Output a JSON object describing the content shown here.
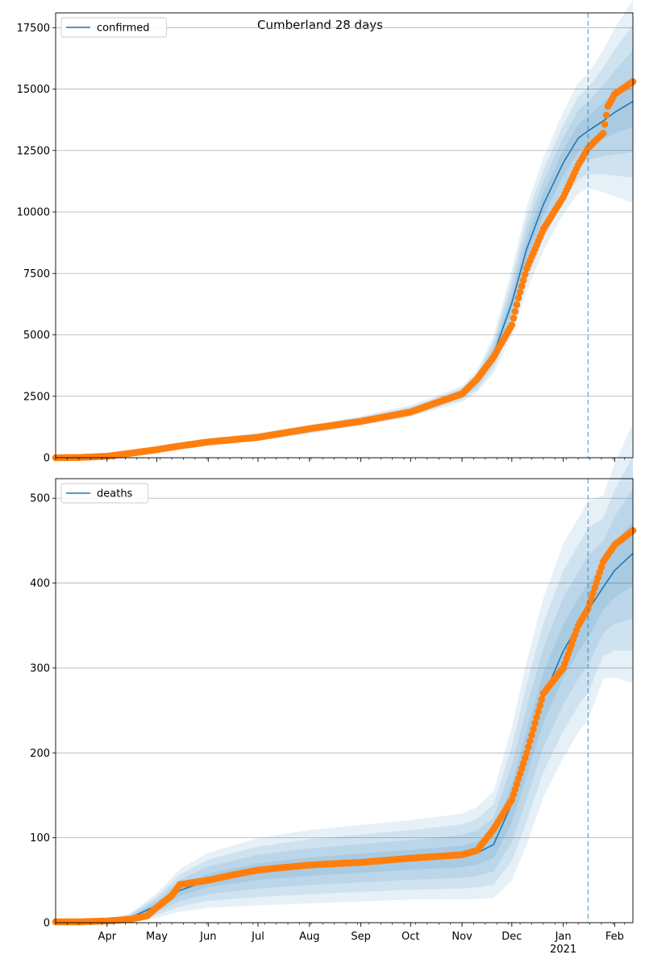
{
  "figure": {
    "title": "Cumberland 28 days"
  },
  "colors": {
    "model": "#1f77b4",
    "observed": "#ff7f0e",
    "band": "#1f77b4",
    "grid": "#b0b0b0",
    "cutoff": "#1f77b4"
  },
  "x_axis": {
    "start_date": "2020-03-01",
    "end_date": "2021-02-12",
    "month_ticks": [
      {
        "label": "Apr",
        "date": "2020-04-01"
      },
      {
        "label": "May",
        "date": "2020-05-01"
      },
      {
        "label": "Jun",
        "date": "2020-06-01"
      },
      {
        "label": "Jul",
        "date": "2020-07-01"
      },
      {
        "label": "Aug",
        "date": "2020-08-01"
      },
      {
        "label": "Sep",
        "date": "2020-09-01"
      },
      {
        "label": "Oct",
        "date": "2020-10-01"
      },
      {
        "label": "Nov",
        "date": "2020-11-01"
      },
      {
        "label": "Dec",
        "date": "2020-12-01"
      },
      {
        "label": "Jan",
        "date": "2021-01-01"
      },
      {
        "label": "Feb",
        "date": "2021-02-01"
      }
    ],
    "year_label": "2021",
    "forecast_cutoff": "2021-01-16"
  },
  "chart_data": [
    {
      "type": "line",
      "legend": "confirmed",
      "legend_position": "top-left",
      "grid": "horizontal",
      "ylim": [
        0,
        18100
      ],
      "yticks": [
        0,
        2500,
        5000,
        7500,
        10000,
        12500,
        15000,
        17500
      ],
      "model": {
        "x": [
          "2020-03-01",
          "2020-03-15",
          "2020-04-01",
          "2020-04-15",
          "2020-05-01",
          "2020-05-15",
          "2020-06-01",
          "2020-07-01",
          "2020-08-01",
          "2020-09-01",
          "2020-10-01",
          "2020-10-15",
          "2020-11-01",
          "2020-11-10",
          "2020-11-20",
          "2020-12-01",
          "2020-12-10",
          "2020-12-20",
          "2021-01-01",
          "2021-01-10",
          "2021-01-16",
          "2021-01-25",
          "2021-02-01",
          "2021-02-12"
        ],
        "y": [
          0,
          15,
          80,
          200,
          350,
          500,
          650,
          850,
          1150,
          1500,
          1900,
          2200,
          2600,
          3100,
          4200,
          6300,
          8500,
          10300,
          12000,
          13000,
          13300,
          13700,
          14050,
          14500
        ],
        "band_half_width": [
          0,
          5,
          20,
          40,
          60,
          70,
          80,
          90,
          100,
          110,
          130,
          150,
          180,
          250,
          420,
          750,
          950,
          1050,
          1150,
          1250,
          1300,
          1600,
          1900,
          2300
        ]
      },
      "observed": {
        "x": [
          "2020-03-01",
          "2020-03-15",
          "2020-04-01",
          "2020-04-15",
          "2020-05-01",
          "2020-05-15",
          "2020-06-01",
          "2020-07-01",
          "2020-08-01",
          "2020-09-01",
          "2020-10-01",
          "2020-10-15",
          "2020-11-01",
          "2020-11-10",
          "2020-11-20",
          "2020-12-01",
          "2020-12-05",
          "2020-12-10",
          "2020-12-20",
          "2021-01-01",
          "2021-01-10",
          "2021-01-16",
          "2021-01-25",
          "2021-01-28",
          "2021-02-01",
          "2021-02-12"
        ],
        "y": [
          0,
          10,
          60,
          180,
          330,
          480,
          640,
          830,
          1180,
          1480,
          1860,
          2200,
          2600,
          3200,
          4100,
          5400,
          6500,
          7700,
          9300,
          10600,
          11900,
          12600,
          13200,
          14300,
          14800,
          15300
        ]
      }
    },
    {
      "type": "line",
      "legend": "deaths",
      "legend_position": "top-left",
      "grid": "horizontal",
      "ylim": [
        0,
        523
      ],
      "yticks": [
        0,
        100,
        200,
        300,
        400,
        500
      ],
      "model": {
        "x": [
          "2020-03-01",
          "2020-03-15",
          "2020-04-01",
          "2020-04-15",
          "2020-05-01",
          "2020-05-15",
          "2020-06-01",
          "2020-07-01",
          "2020-08-01",
          "2020-09-01",
          "2020-10-01",
          "2020-11-01",
          "2020-11-10",
          "2020-11-20",
          "2020-12-01",
          "2020-12-10",
          "2020-12-20",
          "2021-01-01",
          "2021-01-10",
          "2021-01-16",
          "2021-01-25",
          "2021-02-01",
          "2021-02-12"
        ],
        "y": [
          1,
          1,
          2,
          6,
          20,
          38,
          50,
          60,
          66,
          70,
          74,
          78,
          82,
          92,
          140,
          200,
          265,
          320,
          350,
          368,
          395,
          415,
          435
        ],
        "band_half_width": [
          0.5,
          0.5,
          1,
          3,
          8,
          14,
          18,
          22,
          24,
          25,
          26,
          28,
          30,
          35,
          50,
          60,
          65,
          70,
          70,
          72,
          60,
          70,
          85
        ]
      },
      "observed": {
        "x": [
          "2020-03-01",
          "2020-03-15",
          "2020-04-01",
          "2020-04-15",
          "2020-04-25",
          "2020-05-01",
          "2020-05-10",
          "2020-05-15",
          "2020-06-01",
          "2020-06-15",
          "2020-07-01",
          "2020-08-01",
          "2020-09-01",
          "2020-10-01",
          "2020-11-01",
          "2020-11-10",
          "2020-11-20",
          "2020-12-01",
          "2020-12-10",
          "2020-12-20",
          "2021-01-01",
          "2021-01-10",
          "2021-01-16",
          "2021-01-25",
          "2021-02-01",
          "2021-02-12"
        ],
        "y": [
          1,
          1,
          2,
          4,
          8,
          18,
          32,
          45,
          50,
          56,
          62,
          68,
          71,
          76,
          80,
          85,
          110,
          145,
          200,
          270,
          300,
          350,
          370,
          425,
          445,
          462
        ]
      }
    }
  ]
}
